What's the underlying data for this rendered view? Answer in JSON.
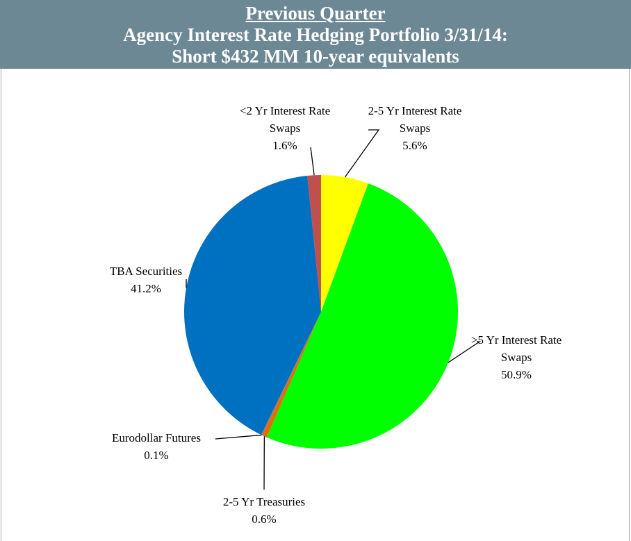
{
  "chart_data": {
    "type": "pie",
    "heading": "Previous Quarter",
    "title": "Agency Interest Rate Hedging Portfolio 3/31/14:",
    "subtitle": "Short $432 MM 10-year equivalents",
    "categories": [
      "2-5 Yr Interest Rate Swaps",
      ">5 Yr Interest Rate Swaps",
      "2-5 Yr Treasuries",
      "Eurodollar Futures",
      "TBA Securities",
      "<2 Yr Interest Rate Swaps"
    ],
    "values": [
      5.6,
      50.9,
      0.6,
      0.1,
      41.2,
      1.6
    ],
    "value_labels": [
      "5.6%",
      "50.9%",
      "0.6%",
      "0.1%",
      "41.2%",
      "1.6%"
    ],
    "colors": [
      "#ffff00",
      "#00ff00",
      "#e46c0a",
      "#7f7f7f",
      "#0070c0",
      "#c0504d"
    ]
  }
}
